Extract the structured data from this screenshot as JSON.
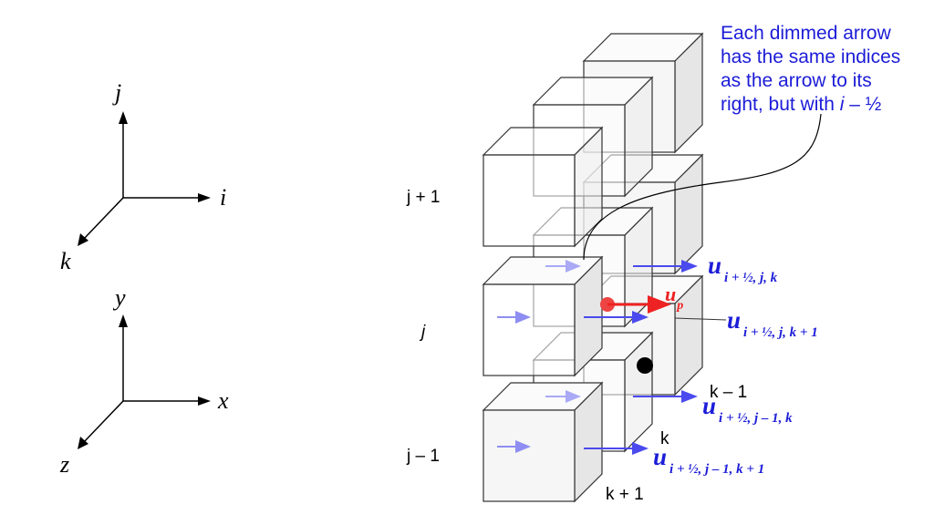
{
  "axes_ijk": {
    "vertical": "j",
    "horizontal": "i",
    "diagonal": "k"
  },
  "axes_xyz": {
    "vertical": "y",
    "horizontal": "x",
    "diagonal": "z"
  },
  "row_labels": {
    "upper": "j + 1",
    "middle": "j",
    "lower": "j – 1"
  },
  "depth_labels": {
    "k_minus_1": "k – 1",
    "k": "k",
    "k_plus_1": "k + 1"
  },
  "velocity_labels": {
    "u1": {
      "symbol": "u",
      "subscript": "i + ½, j, k"
    },
    "u2": {
      "symbol": "u",
      "subscript": "i + ½, j, k + 1"
    },
    "u3": {
      "symbol": "u",
      "subscript": "i + ½, j – 1, k"
    },
    "u4": {
      "symbol": "u",
      "subscript": "i + ½, j – 1, k + 1"
    },
    "up": {
      "symbol": "u",
      "subscript": "p"
    }
  },
  "annotation": {
    "lines": [
      "Each dimmed arrow",
      "has the same indices",
      "as the arrow to its",
      "right, but with "
    ],
    "italic_part": "i",
    "tail_part": " – ½"
  },
  "colors": {
    "arrow_bright": "#4a4aee",
    "arrow_dim": "#a9a9f6",
    "particle": "#ee2222",
    "text_blue": "#1c1cd8"
  }
}
